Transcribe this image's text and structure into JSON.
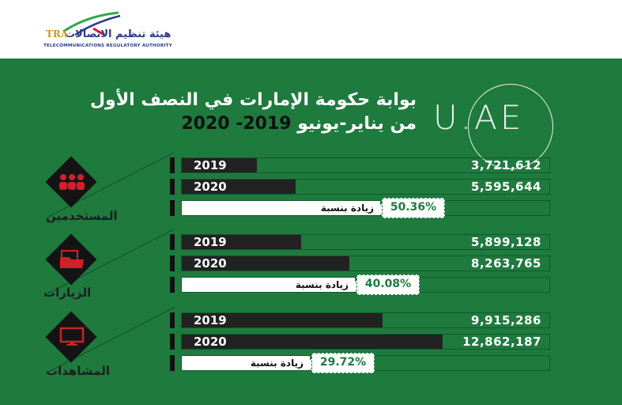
{
  "logo": {
    "arabic_name": "هيئة تنظيم الاتصالات",
    "abbr": "TRA",
    "english_name": "TELECOMMUNICATIONS REGULATORY AUTHORITY"
  },
  "brand_mark": "U.AE",
  "title_line1": "بوابة حكومة الإمارات في النصف الأول",
  "title_line2_prefix": "من يناير-يونيو ",
  "title_line2_years": "2019- 2020",
  "increase_label": "زيادة بنسبة",
  "colors": {
    "background": "#1f7a3e",
    "bar": "#222222",
    "accent_icon": "#d0202a"
  },
  "chart_data": [
    {
      "type": "bar",
      "category_label": "المستخدمين",
      "icon": "users-icon",
      "categories": [
        "2019",
        "2020"
      ],
      "values": [
        3721612,
        5595644
      ],
      "value_labels": [
        "3,721,612",
        "5,595,644"
      ],
      "increase": "50.36%"
    },
    {
      "type": "bar",
      "category_label": "الزيارات",
      "icon": "folder-icon",
      "categories": [
        "2019",
        "2020"
      ],
      "values": [
        5899128,
        8263765
      ],
      "value_labels": [
        "5,899,128",
        "8,263,765"
      ],
      "increase": "40.08%"
    },
    {
      "type": "bar",
      "category_label": "المشاهدات",
      "icon": "monitor-icon",
      "categories": [
        "2019",
        "2020"
      ],
      "values": [
        9915286,
        12862187
      ],
      "value_labels": [
        "9,915,286",
        "12,862,187"
      ],
      "increase": "29.72%"
    }
  ]
}
